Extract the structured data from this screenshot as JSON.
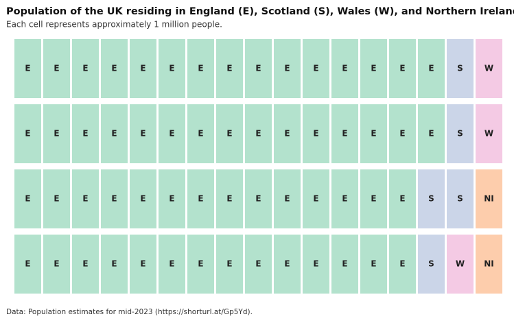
{
  "chart_data": {
    "type": "waffle",
    "title": "Population of the UK residing in England (E), Scotland (S), Wales (W), and Northern Ireland (NI).",
    "subtitle": "Each cell represents approximately 1 million people.",
    "source": "Data: Population estimates for mid-2023 (https://shorturl.at/Gp5Yd).",
    "rows": [
      [
        "E",
        "E",
        "E",
        "E",
        "E",
        "E",
        "E",
        "E",
        "E",
        "E",
        "E",
        "E",
        "E",
        "E",
        "E",
        "S",
        "W"
      ],
      [
        "E",
        "E",
        "E",
        "E",
        "E",
        "E",
        "E",
        "E",
        "E",
        "E",
        "E",
        "E",
        "E",
        "E",
        "E",
        "S",
        "W"
      ],
      [
        "E",
        "E",
        "E",
        "E",
        "E",
        "E",
        "E",
        "E",
        "E",
        "E",
        "E",
        "E",
        "E",
        "E",
        "S",
        "S",
        "NI"
      ],
      [
        "E",
        "E",
        "E",
        "E",
        "E",
        "E",
        "E",
        "E",
        "E",
        "E",
        "E",
        "E",
        "E",
        "E",
        "S",
        "W",
        "NI"
      ]
    ],
    "colors": {
      "E": "#b3e2cd",
      "S": "#cbd5e8",
      "W": "#f4cae4",
      "NI": "#fdcdac"
    }
  }
}
